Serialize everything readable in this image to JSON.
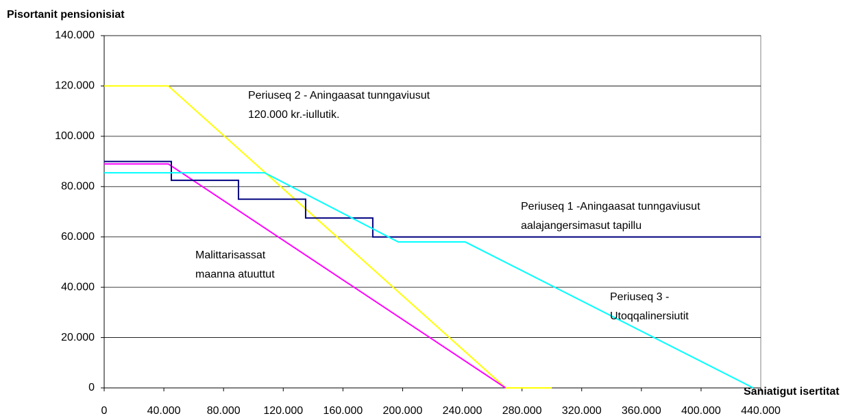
{
  "chart_data": {
    "type": "line",
    "ylabel": "Pisortanit pensionisiat",
    "xlabel": "Saniatigut isertitat",
    "xlim": [
      0,
      440000
    ],
    "ylim": [
      0,
      140000
    ],
    "xticks": [
      0,
      {
        "value": 40000,
        "label": "40.000"
      },
      {
        "value": 80000,
        "label": "80.000"
      },
      {
        "value": 120000,
        "label": "120.000"
      },
      {
        "value": 160000,
        "label": "160.000"
      },
      {
        "value": 200000,
        "label": "200.000"
      },
      {
        "value": 240000,
        "label": "240.000"
      },
      {
        "value": 280000,
        "label": "280.000"
      },
      {
        "value": 320000,
        "label": "320.000"
      },
      {
        "value": 360000,
        "label": "360.000"
      },
      {
        "value": 400000,
        "label": "400.000"
      },
      {
        "value": 440000,
        "label": "440.000"
      }
    ],
    "yticks": [
      0,
      {
        "value": 20000,
        "label": "20.000"
      },
      {
        "value": 40000,
        "label": "40.000"
      },
      {
        "value": 60000,
        "label": "60.000"
      },
      {
        "value": 80000,
        "label": "80.000"
      },
      {
        "value": 100000,
        "label": "100.000"
      },
      {
        "value": 120000,
        "label": "120.000"
      },
      {
        "value": 140000,
        "label": "140.000"
      }
    ],
    "grid": true,
    "series": [
      {
        "color": "#ffff00",
        "x": [
          0,
          43000,
          269000,
          300000
        ],
        "values": [
          120000,
          120000,
          0,
          0
        ]
      },
      {
        "color": "#ff00ff",
        "x": [
          0,
          43000,
          269000
        ],
        "values": [
          89000,
          89000,
          0
        ]
      },
      {
        "color": "#000080",
        "x": [
          0,
          45000,
          45000,
          90000,
          90000,
          135000,
          135000,
          180000,
          180000,
          440000
        ],
        "values": [
          90000,
          90000,
          82500,
          82500,
          75000,
          75000,
          67500,
          67500,
          60000,
          60000
        ]
      },
      {
        "color": "#00ffff",
        "x": [
          0,
          107500,
          197000,
          242000,
          435000
        ],
        "values": [
          85500,
          85500,
          58000,
          58000,
          0
        ]
      }
    ],
    "annotations": [
      [
        "Periuseq 2 - Aningaasat tunngaviusut",
        "120.000 kr.-iullutik."
      ],
      [
        "Periuseq 1 -Aningaasat tunngaviusut",
        "aalajangersimasut tapillu"
      ],
      [
        "Malittarisassat",
        "maanna atuuttut"
      ],
      [
        "Periuseq 3 -",
        "Utoqqalinersiutit"
      ]
    ]
  }
}
